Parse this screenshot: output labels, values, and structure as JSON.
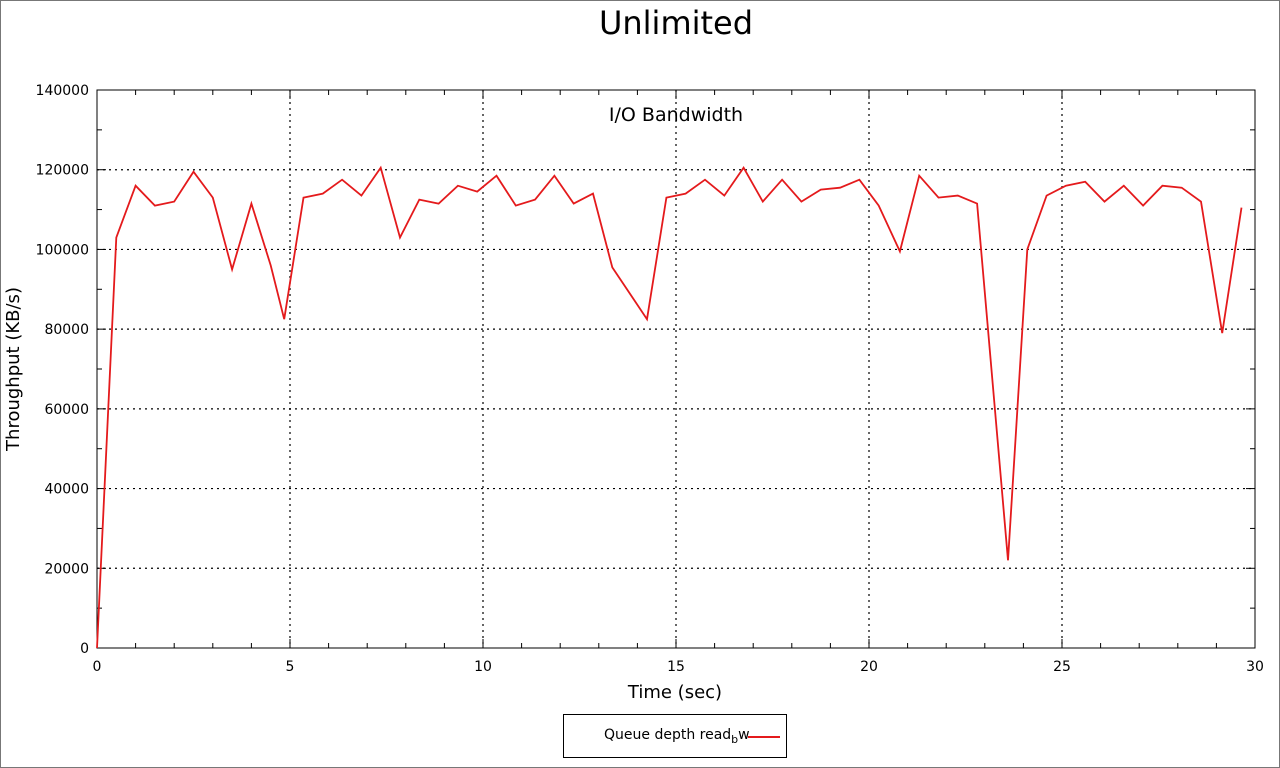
{
  "chart_data": {
    "type": "line",
    "title": "Unlimited",
    "subtitle": "I/O Bandwidth",
    "xlabel": "Time (sec)",
    "ylabel": "Throughput (KB/s)",
    "xlim": [
      0,
      30
    ],
    "ylim": [
      0,
      140000
    ],
    "xticks": [
      0,
      5,
      10,
      15,
      20,
      25,
      30
    ],
    "yticks": [
      0,
      20000,
      40000,
      60000,
      80000,
      100000,
      120000,
      140000
    ],
    "grid": true,
    "legend_position": "bottom-center",
    "series": [
      {
        "name": "Queue depth read_bw",
        "name_parts": {
          "main": "Queue depth read",
          "sub": "b",
          "tail": "w"
        },
        "color": "#e41a1c",
        "x": [
          0.0,
          0.5,
          1.0,
          1.5,
          2.0,
          2.5,
          3.0,
          3.5,
          4.0,
          4.5,
          4.85,
          5.35,
          5.85,
          6.35,
          6.85,
          7.35,
          7.85,
          8.35,
          8.85,
          9.35,
          9.85,
          10.35,
          10.85,
          11.35,
          11.85,
          12.35,
          12.85,
          13.35,
          14.25,
          14.75,
          15.25,
          15.75,
          16.25,
          16.75,
          17.25,
          17.75,
          18.25,
          18.75,
          19.25,
          19.75,
          20.25,
          20.8,
          21.3,
          21.8,
          22.3,
          22.8,
          23.6,
          24.1,
          24.6,
          25.1,
          25.6,
          26.1,
          26.6,
          27.1,
          27.6,
          28.1,
          28.6,
          29.15,
          29.65
        ],
        "y": [
          0,
          103000,
          116000,
          111000,
          112000,
          119500,
          113000,
          95000,
          111500,
          96000,
          82500,
          113000,
          114000,
          117500,
          113500,
          120500,
          103000,
          112500,
          111500,
          116000,
          114500,
          118500,
          111000,
          112500,
          118500,
          111500,
          114000,
          95500,
          82500,
          113000,
          114000,
          117500,
          113500,
          120500,
          112000,
          117500,
          112000,
          115000,
          115500,
          117500,
          111000,
          99500,
          118500,
          113000,
          113500,
          111500,
          22000,
          100000,
          113500,
          116000,
          117000,
          112000,
          116000,
          111000,
          116000,
          115500,
          112000,
          79000,
          110500
        ]
      }
    ]
  }
}
